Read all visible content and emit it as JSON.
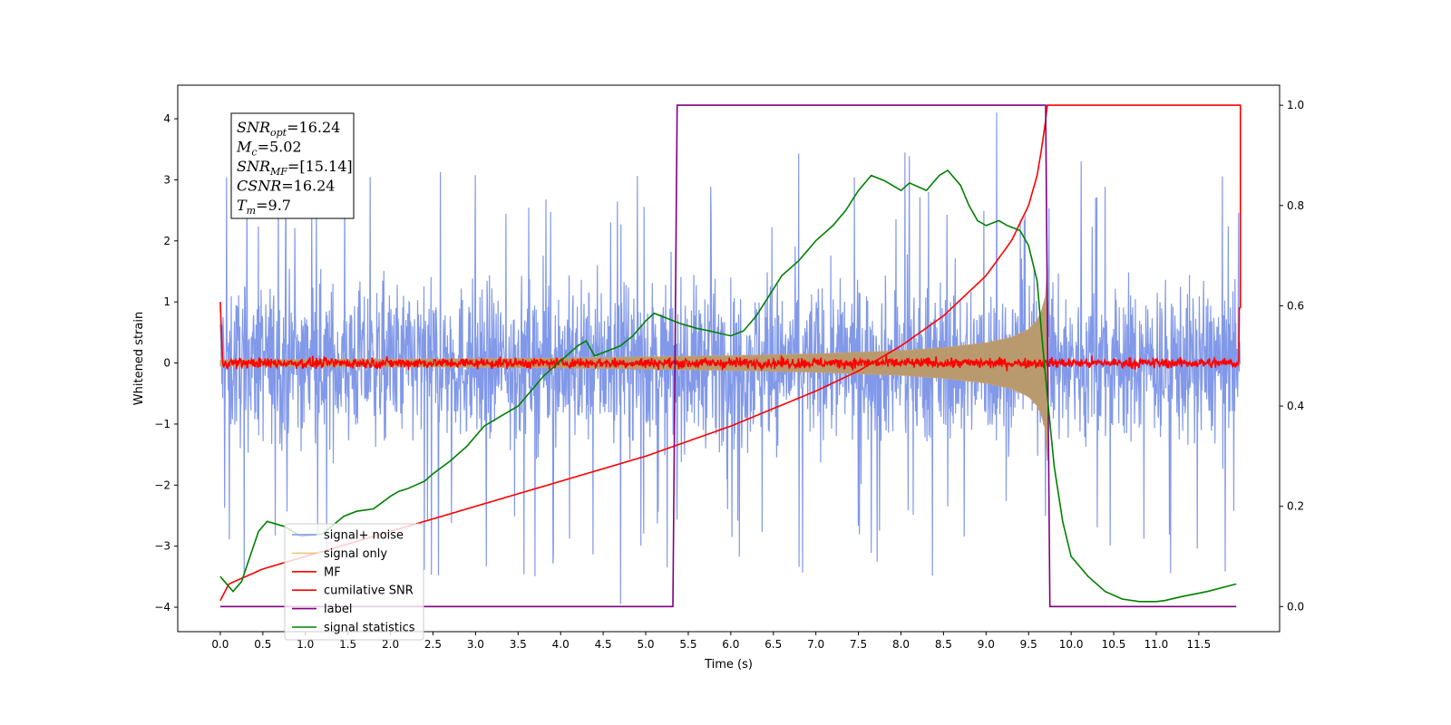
{
  "chart_data": {
    "type": "line",
    "title": "",
    "xlabel": "Time (s)",
    "ylabel": "Whitened strain",
    "y2label": "",
    "xlim": [
      -0.5,
      12.45
    ],
    "ylim": [
      -4.4,
      4.55
    ],
    "y2lim": [
      -0.05,
      1.04
    ],
    "xticks": [
      0.0,
      0.5,
      1.0,
      1.5,
      2.0,
      2.5,
      3.0,
      3.5,
      4.0,
      4.5,
      5.0,
      5.5,
      6.0,
      6.5,
      7.0,
      7.5,
      8.0,
      8.5,
      9.0,
      9.5,
      10.0,
      10.5,
      11.0,
      11.5
    ],
    "xtick_labels": [
      "0.0",
      "0.5",
      "1.0",
      "1.5",
      "2.0",
      "2.5",
      "3.0",
      "3.5",
      "4.0",
      "4.5",
      "5.0",
      "5.5",
      "6.0",
      "6.5",
      "7.0",
      "7.5",
      "8.0",
      "8.5",
      "9.0",
      "9.5",
      "10.0",
      "10.5",
      "11.0",
      "11.5"
    ],
    "yticks": [
      -4,
      -3,
      -2,
      -1,
      0,
      1,
      2,
      3,
      4
    ],
    "ytick_labels": [
      "−4",
      "−3",
      "−2",
      "−1",
      "0",
      "1",
      "2",
      "3",
      "4"
    ],
    "y2ticks": [
      0.0,
      0.2,
      0.4,
      0.6,
      0.8,
      1.0
    ],
    "y2tick_labels": [
      "0.0",
      "0.2",
      "0.4",
      "0.6",
      "0.8",
      "1.0"
    ],
    "grid": false,
    "legend_position": "lower-left",
    "annotation": [
      {
        "base": "SNR",
        "sub": "opt",
        "value": "=16.24"
      },
      {
        "base": "M",
        "sub": "c",
        "value": "=5.02"
      },
      {
        "base": "SNR",
        "sub": "MF",
        "value": "=[15.14]"
      },
      {
        "base": "CSNR",
        "sub": "",
        "value": "=16.24"
      },
      {
        "base": "T",
        "sub": "m",
        "value": "=9.7"
      }
    ],
    "series": [
      {
        "name": "signal+ noise",
        "color": "#7b93e8",
        "axis": "left",
        "kind": "noise",
        "x_range": [
          0.0,
          11.99
        ],
        "description_amplitude": 1.2,
        "peak": 4.1,
        "trough": -3.95
      },
      {
        "name": "signal only",
        "color": "#f5c27a",
        "axis": "left",
        "kind": "chirp",
        "x_range": [
          0.0,
          9.72
        ],
        "envelope_x": [
          0.0,
          2.0,
          4.0,
          6.0,
          7.0,
          8.0,
          8.5,
          9.0,
          9.3,
          9.5,
          9.6,
          9.65,
          9.7,
          9.72
        ],
        "envelope_y": [
          0.05,
          0.06,
          0.08,
          0.12,
          0.15,
          0.2,
          0.25,
          0.33,
          0.42,
          0.55,
          0.7,
          0.85,
          1.1,
          1.6
        ]
      },
      {
        "name": "MF",
        "color": "#ff0000",
        "axis": "left",
        "kind": "noise",
        "x_range": [
          0.0,
          11.99
        ],
        "description_amplitude": 0.08
      },
      {
        "name": "cumilative SNR",
        "color": "#ff0000",
        "axis": "right",
        "x": [
          0.0,
          0.1,
          0.5,
          1.0,
          2.0,
          3.0,
          4.0,
          5.0,
          6.0,
          7.0,
          7.5,
          8.0,
          8.5,
          9.0,
          9.3,
          9.5,
          9.6,
          9.65,
          9.7,
          9.72,
          11.99
        ],
        "y": [
          0.012,
          0.045,
          0.075,
          0.1,
          0.15,
          0.2,
          0.25,
          0.3,
          0.36,
          0.43,
          0.47,
          0.52,
          0.58,
          0.66,
          0.73,
          0.8,
          0.86,
          0.91,
          0.97,
          1.0,
          1.0
        ]
      },
      {
        "name": "label",
        "color": "#800080",
        "axis": "right",
        "x": [
          0.0,
          5.32,
          5.37,
          9.7,
          9.75,
          11.94
        ],
        "y": [
          0.0,
          0.0,
          1.0,
          1.0,
          0.0,
          0.0
        ]
      },
      {
        "name": "signal statistics",
        "color": "#008000",
        "axis": "right",
        "x": [
          0.0,
          0.05,
          0.15,
          0.25,
          0.35,
          0.45,
          0.55,
          0.75,
          0.95,
          1.2,
          1.45,
          1.6,
          1.8,
          2.0,
          2.1,
          2.2,
          2.4,
          2.5,
          2.7,
          2.9,
          3.1,
          3.3,
          3.5,
          3.65,
          3.8,
          4.0,
          4.2,
          4.3,
          4.4,
          4.55,
          4.7,
          4.85,
          5.0,
          5.1,
          5.25,
          5.4,
          5.6,
          5.75,
          6.0,
          6.15,
          6.3,
          6.45,
          6.6,
          6.8,
          7.0,
          7.2,
          7.35,
          7.5,
          7.65,
          7.8,
          7.9,
          8.0,
          8.1,
          8.3,
          8.45,
          8.55,
          8.7,
          8.8,
          8.9,
          9.0,
          9.15,
          9.25,
          9.4,
          9.5,
          9.6,
          9.65,
          9.72,
          9.8,
          9.9,
          10.0,
          10.2,
          10.4,
          10.6,
          10.8,
          11.0,
          11.1,
          11.3,
          11.6,
          11.94
        ],
        "y": [
          0.06,
          0.05,
          0.03,
          0.05,
          0.1,
          0.15,
          0.17,
          0.16,
          0.14,
          0.145,
          0.18,
          0.19,
          0.195,
          0.22,
          0.23,
          0.235,
          0.25,
          0.265,
          0.29,
          0.32,
          0.36,
          0.38,
          0.4,
          0.43,
          0.46,
          0.49,
          0.52,
          0.53,
          0.5,
          0.51,
          0.52,
          0.54,
          0.57,
          0.585,
          0.575,
          0.565,
          0.555,
          0.55,
          0.54,
          0.55,
          0.58,
          0.62,
          0.66,
          0.69,
          0.73,
          0.76,
          0.79,
          0.83,
          0.86,
          0.85,
          0.84,
          0.83,
          0.845,
          0.83,
          0.86,
          0.87,
          0.84,
          0.8,
          0.77,
          0.76,
          0.77,
          0.76,
          0.75,
          0.72,
          0.65,
          0.55,
          0.42,
          0.28,
          0.17,
          0.1,
          0.06,
          0.03,
          0.015,
          0.01,
          0.01,
          0.012,
          0.02,
          0.03,
          0.045
        ]
      }
    ]
  }
}
